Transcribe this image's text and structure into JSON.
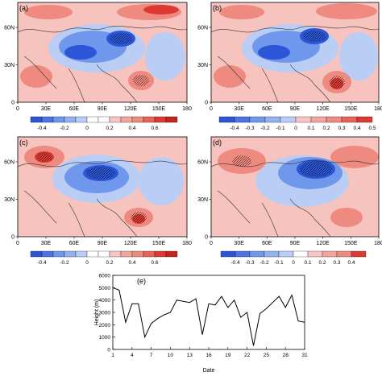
{
  "panels": [
    {
      "label": "(a)",
      "colorbar": [
        "-0.4",
        "-0.2",
        "0",
        "0.2",
        "0.4",
        "0.6"
      ]
    },
    {
      "label": "(b)",
      "colorbar": [
        "-0.4",
        "-0.3",
        "-0.2",
        "-0.1",
        "0",
        "0.1",
        "0.2",
        "0.3",
        "0.4",
        "0.5"
      ]
    },
    {
      "label": "(c)",
      "colorbar": [
        "-0.4",
        "-0.2",
        "0",
        "0.2",
        "0.4",
        "0.6"
      ]
    },
    {
      "label": "(d)",
      "colorbar": [
        "-0.4",
        "-0.3",
        "-0.2",
        "-0.1",
        "0",
        "0.1",
        "0.2",
        "0.3",
        "0.4"
      ]
    }
  ],
  "map_axes": {
    "lon_ticks": [
      "0",
      "30E",
      "60E",
      "90E",
      "120E",
      "150E",
      "180"
    ],
    "lat_ticks": [
      "0",
      "30N",
      "60N"
    ]
  },
  "colors": {
    "neg_strong": "#2c56d6",
    "neg_mid": "#6f97ec",
    "neg_light": "#b9cdf5",
    "neutral": "#ffffff",
    "pos_light": "#f8c6c2",
    "pos_mid": "#ee8a80",
    "pos_strong": "#dd3a33"
  },
  "chart_data": {
    "type": "line",
    "panel_label": "(e)",
    "xlabel": "Date",
    "ylabel": "Height (m)",
    "xlim": [
      1,
      31
    ],
    "ylim": [
      0,
      6000
    ],
    "xticks": [
      "1",
      "4",
      "7",
      "10",
      "13",
      "16",
      "19",
      "22",
      "25",
      "28",
      "31"
    ],
    "yticks": [
      "0",
      "1000",
      "2000",
      "3000",
      "4000",
      "5000",
      "6000"
    ],
    "x": [
      1,
      2,
      3,
      4,
      5,
      6,
      7,
      8,
      9,
      10,
      11,
      12,
      13,
      14,
      15,
      16,
      17,
      18,
      19,
      20,
      21,
      22,
      23,
      24,
      25,
      26,
      27,
      28,
      29,
      30,
      31
    ],
    "values": [
      5000,
      4800,
      2200,
      3700,
      3700,
      1000,
      2100,
      2500,
      2800,
      3000,
      4000,
      3900,
      3800,
      4100,
      1200,
      3700,
      3600,
      4300,
      3400,
      4000,
      2600,
      3000,
      300,
      2900,
      3300,
      3800,
      4300,
      3400,
      4400,
      2300,
      2200
    ]
  }
}
